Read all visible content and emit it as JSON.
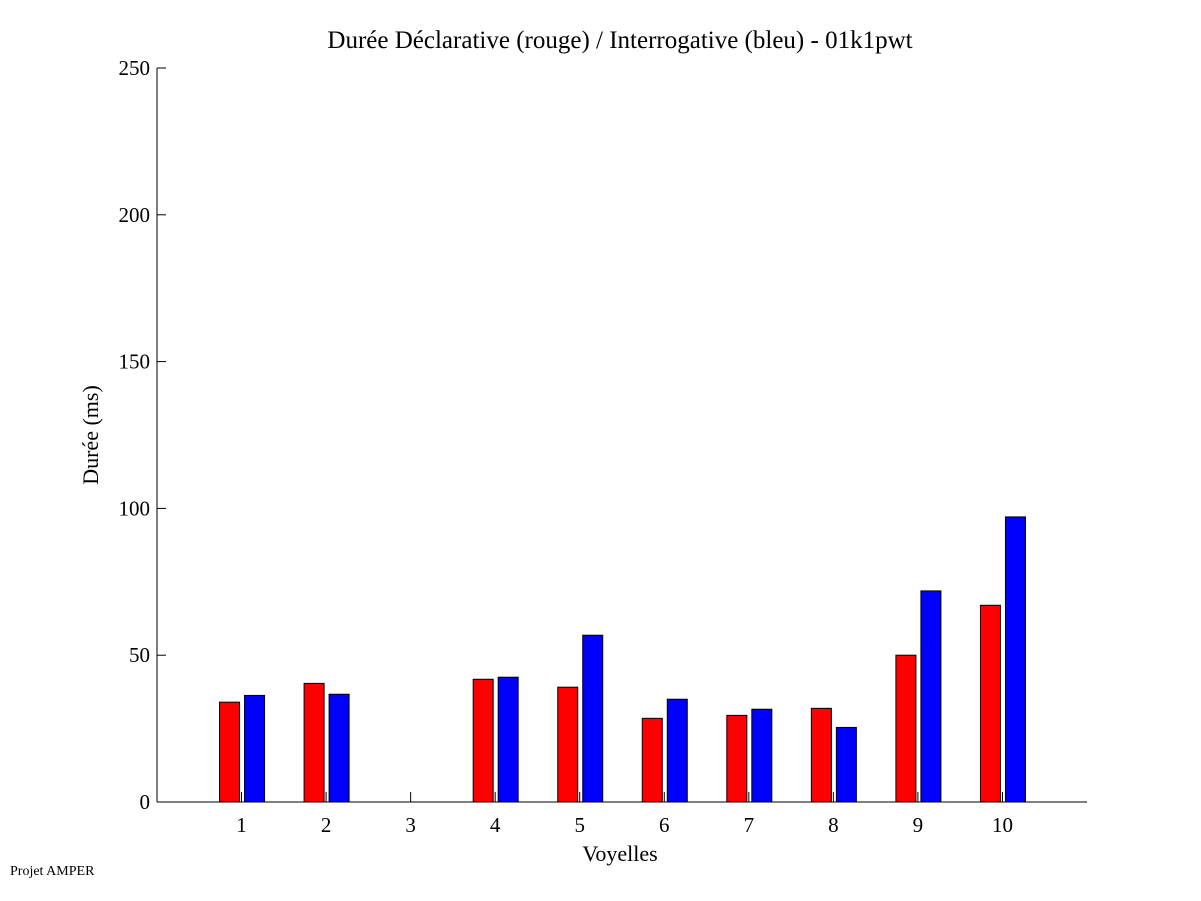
{
  "chart_data": {
    "type": "bar",
    "title": "Durée Déclarative (rouge) / Interrogative (bleu) - 01k1pwt",
    "xlabel": "Voyelles",
    "ylabel": "Durée (ms)",
    "categories": [
      "1",
      "2",
      "3",
      "4",
      "5",
      "6",
      "7",
      "8",
      "9",
      "10"
    ],
    "xlim": [
      0,
      11
    ],
    "ylim": [
      0,
      250
    ],
    "yticks": [
      0,
      50,
      100,
      150,
      200,
      250
    ],
    "grid": false,
    "series": [
      {
        "name": "Déclarative",
        "color": "#ff0000",
        "values": [
          34.0,
          40.4,
          0,
          41.8,
          39.1,
          28.5,
          29.5,
          31.9,
          50.0,
          67.0
        ]
      },
      {
        "name": "Interrogative",
        "color": "#0000ff",
        "values": [
          36.3,
          36.7,
          0,
          42.5,
          56.8,
          35.0,
          31.6,
          25.4,
          71.9,
          97.1
        ]
      }
    ]
  },
  "footer": "Projet AMPER"
}
